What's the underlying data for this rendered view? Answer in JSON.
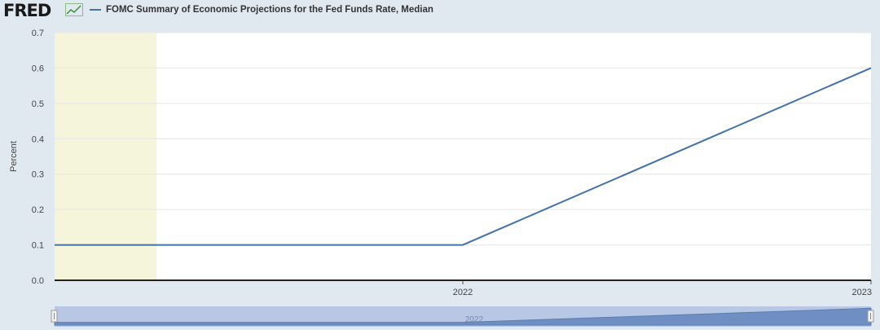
{
  "brand": {
    "logo_text": "FRED"
  },
  "legend": {
    "label": "FOMC Summary of Economic Projections for the Fed Funds Rate, Median",
    "color": "#4572a7"
  },
  "colors": {
    "plot_bg": "#ffffff",
    "page_bg": "#e1e9f0",
    "line": "#4572a7",
    "recession_band": "#f5f5dc",
    "navigator_bg": "#b8c8e4",
    "navigator_fill": "#6f8fc2"
  },
  "chart_data": {
    "type": "line",
    "title": "",
    "xlabel": "",
    "ylabel": "Percent",
    "x": [
      "2021",
      "2022",
      "2023"
    ],
    "series": [
      {
        "name": "FOMC Summary of Economic Projections for the Fed Funds Rate, Median",
        "values": [
          0.1,
          0.1,
          0.6
        ]
      }
    ],
    "xlim": [
      "2021",
      "2023"
    ],
    "ylim": [
      0.0,
      0.7
    ],
    "yticks": [
      "0.0",
      "0.1",
      "0.2",
      "0.3",
      "0.4",
      "0.5",
      "0.6",
      "0.7"
    ],
    "xticks": [
      "2022",
      "2023"
    ],
    "grid": true,
    "legend_position": "top-left",
    "shaded_regions": [
      {
        "start": "2021",
        "end": "2021.25"
      }
    ],
    "navigator_label": "2022"
  }
}
